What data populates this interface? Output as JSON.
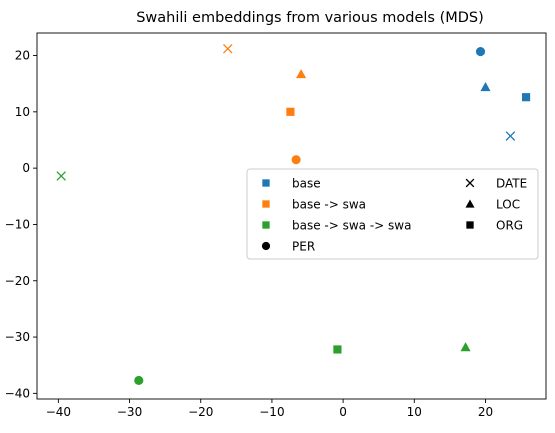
{
  "chart_data": {
    "type": "scatter",
    "title": "Swahili embeddings from various models (MDS)",
    "xlabel": "",
    "ylabel": "",
    "xlim": [
      -43,
      28.5
    ],
    "ylim": [
      -41,
      24
    ],
    "xticks": [
      -40,
      -30,
      -20,
      -10,
      0,
      10,
      20
    ],
    "yticks": [
      20,
      10,
      0,
      -10,
      -20,
      -30,
      -40
    ],
    "grid": false,
    "legend_position": "center-right",
    "colors": {
      "base": "#1f77b4",
      "base -> swa": "#ff7f0e",
      "base -> swa -> swa": "#2ca02c",
      "marker_key": "#000000"
    },
    "legend": {
      "column1": [
        {
          "label": "base",
          "marker": "square",
          "color_key": "base"
        },
        {
          "label": "base -> swa",
          "marker": "square",
          "color_key": "base -> swa"
        },
        {
          "label": "base -> swa -> swa",
          "marker": "square",
          "color_key": "base -> swa -> swa"
        },
        {
          "label": "PER",
          "marker": "circle",
          "color_key": "marker_key"
        }
      ],
      "column2": [
        {
          "label": "DATE",
          "marker": "x",
          "color_key": "marker_key"
        },
        {
          "label": "LOC",
          "marker": "triangle",
          "color_key": "marker_key"
        },
        {
          "label": "ORG",
          "marker": "square",
          "color_key": "marker_key"
        }
      ]
    },
    "series": [
      {
        "name": "base",
        "points": [
          {
            "x": 19.3,
            "y": 20.7,
            "marker": "circle"
          },
          {
            "x": 20.0,
            "y": 14.4,
            "marker": "triangle"
          },
          {
            "x": 25.7,
            "y": 12.6,
            "marker": "square"
          },
          {
            "x": 23.5,
            "y": 5.7,
            "marker": "x"
          }
        ]
      },
      {
        "name": "base -> swa",
        "points": [
          {
            "x": -16.2,
            "y": 21.2,
            "marker": "x"
          },
          {
            "x": -5.9,
            "y": 16.7,
            "marker": "triangle"
          },
          {
            "x": -7.4,
            "y": 10.0,
            "marker": "square"
          },
          {
            "x": -6.6,
            "y": 1.5,
            "marker": "circle"
          }
        ]
      },
      {
        "name": "base -> swa -> swa",
        "points": [
          {
            "x": -39.6,
            "y": -1.4,
            "marker": "x"
          },
          {
            "x": -0.8,
            "y": -32.2,
            "marker": "square"
          },
          {
            "x": 17.2,
            "y": -31.8,
            "marker": "triangle"
          },
          {
            "x": -28.7,
            "y": -37.7,
            "marker": "circle"
          }
        ]
      }
    ]
  }
}
